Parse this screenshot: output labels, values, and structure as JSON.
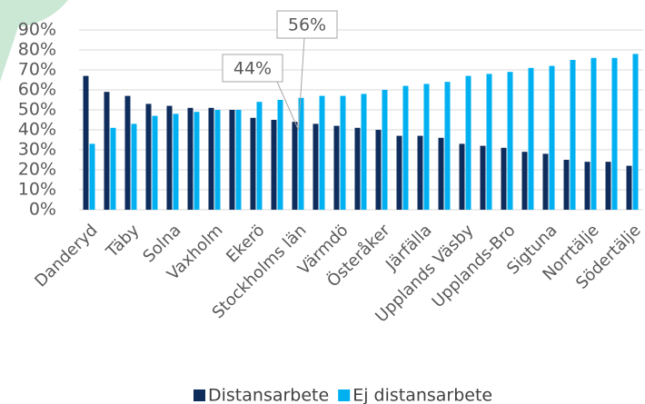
{
  "chart_data": {
    "type": "bar",
    "categories": [
      "Danderyd",
      null,
      "Täby",
      null,
      "Solna",
      null,
      "Vaxholm",
      null,
      "Ekerö",
      null,
      "Stockholms län",
      null,
      "Värmdö",
      null,
      "Österåker",
      null,
      "Järfälla",
      null,
      "Upplands Väsby",
      null,
      "Upplands-Bro",
      null,
      "Sigtuna",
      null,
      "Norrtälje",
      null,
      "Södertälje"
    ],
    "series": [
      {
        "name": "Distansarbete",
        "color": "#0f2d5c",
        "values": [
          67,
          59,
          57,
          53,
          52,
          51,
          51,
          50,
          46,
          45,
          44,
          43,
          42,
          41,
          40,
          37,
          37,
          36,
          33,
          32,
          31,
          29,
          28,
          25,
          24,
          24,
          22
        ]
      },
      {
        "name": "Ej distansarbete",
        "color": "#00b0f0",
        "values": [
          33,
          41,
          43,
          47,
          48,
          49,
          50,
          50,
          54,
          55,
          56,
          57,
          57,
          58,
          60,
          62,
          63,
          64,
          67,
          68,
          69,
          71,
          72,
          75,
          76,
          76,
          78
        ]
      }
    ],
    "ylim": [
      0,
      90
    ],
    "yticks": [
      {
        "value": 0,
        "label": "0%"
      },
      {
        "value": 10,
        "label": "10%"
      },
      {
        "value": 20,
        "label": "20%"
      },
      {
        "value": 30,
        "label": "30%"
      },
      {
        "value": 40,
        "label": "40%"
      },
      {
        "value": 50,
        "label": "50%"
      },
      {
        "value": 60,
        "label": "60%"
      },
      {
        "value": 70,
        "label": "70%"
      },
      {
        "value": 80,
        "label": "80%"
      },
      {
        "value": 90,
        "label": "90%"
      }
    ],
    "grid": true,
    "legend": "bottom",
    "annotations": [
      "44%",
      "56%"
    ]
  }
}
